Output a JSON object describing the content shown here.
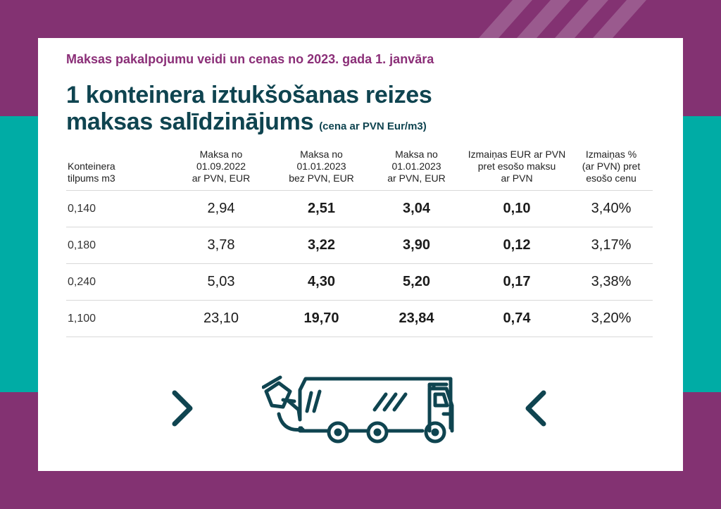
{
  "header": {
    "subtitle": "Maksas pakalpojumu veidi un cenas no 2023. gada 1. janvāra",
    "title_line1": "1 konteinera iztukšošanas reizes",
    "title_line2": "maksas salīdzinājums",
    "title_unit": "(cena ar PVN Eur/m3)"
  },
  "table": {
    "columns": [
      [
        "Konteinera",
        "tilpums m3"
      ],
      [
        "Maksa no",
        "01.09.2022",
        "ar PVN, EUR"
      ],
      [
        "Maksa no",
        "01.01.2023",
        "bez PVN, EUR"
      ],
      [
        "Maksa no",
        "01.01.2023",
        "ar PVN, EUR"
      ],
      [
        "Izmaiņas EUR ar PVN",
        "pret esošo maksu",
        "ar PVN"
      ],
      [
        "Izmaiņas %",
        "(ar PVN) pret",
        "esošo cenu"
      ]
    ],
    "rows": [
      [
        "0,140",
        "2,94",
        "2,51",
        "3,04",
        "0,10",
        "3,40%"
      ],
      [
        "0,180",
        "3,78",
        "3,22",
        "3,90",
        "0,12",
        "3,17%"
      ],
      [
        "0,240",
        "5,03",
        "4,30",
        "5,20",
        "0,17",
        "3,38%"
      ],
      [
        "1,100",
        "23,10",
        "19,70",
        "23,84",
        "0,74",
        "3,20%"
      ]
    ]
  },
  "icons": {
    "left": "chevron-right-icon",
    "center": "garbage-truck-icon",
    "right": "chevron-left-icon"
  },
  "colors": {
    "purple": "#833272",
    "teal": "#00aca5",
    "dark_teal": "#0f4450",
    "subtitle_purple": "#8b2f78"
  }
}
